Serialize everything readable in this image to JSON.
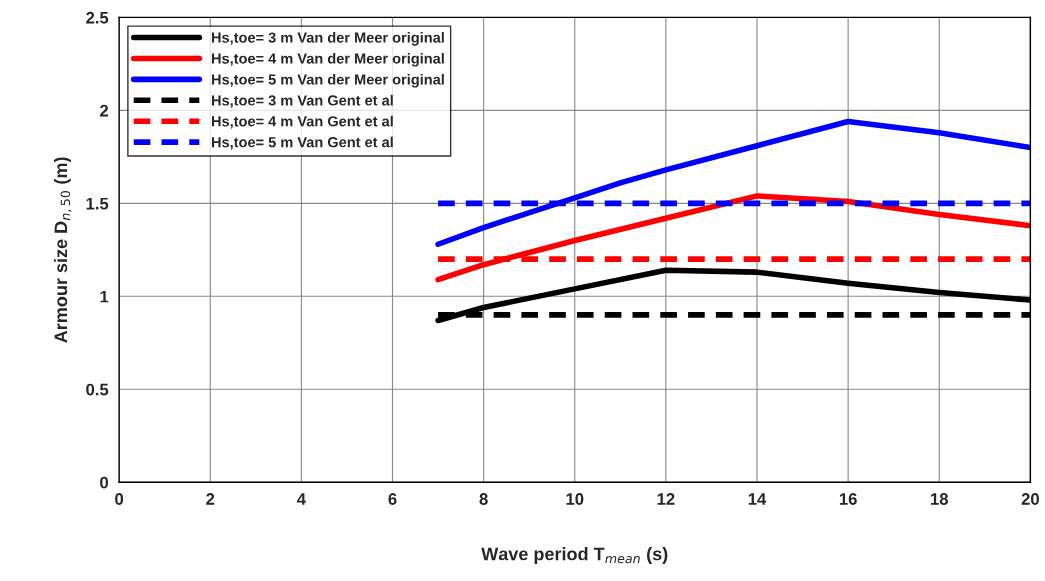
{
  "chart_data": {
    "type": "line",
    "xlabel": "Wave period T$_{mean}$ (s)",
    "ylabel": "Armour size D$_{n,50}$ (m)",
    "xlim": [
      0,
      20
    ],
    "xticks": [
      0,
      2,
      4,
      6,
      8,
      10,
      12,
      14,
      16,
      18,
      20
    ],
    "ylim": [
      0,
      2.5
    ],
    "yticks": [
      0,
      0.5,
      1,
      1.5,
      2,
      2.5
    ],
    "grid": true,
    "legend": "top left",
    "marker": "none",
    "series": [
      {
        "name": "Hs,toe= 3 m Van der Meer original",
        "color": "#000000",
        "line_style": "solid",
        "x": [
          7,
          8,
          10,
          12,
          14,
          16,
          18,
          20
        ],
        "values": [
          0.87,
          0.94,
          1.04,
          1.14,
          1.13,
          1.07,
          1.02,
          0.98
        ]
      },
      {
        "name": "Hs,toe= 4 m Van der Meer original",
        "color": "#ff0000",
        "line_style": "solid",
        "x": [
          7,
          8,
          10,
          12,
          14,
          16,
          18,
          20
        ],
        "values": [
          1.09,
          1.17,
          1.3,
          1.42,
          1.54,
          1.51,
          1.44,
          1.38
        ]
      },
      {
        "name": "Hs,toe= 5 m Van der Meer original",
        "color": "#0000ff",
        "line_style": "solid",
        "x": [
          7,
          8,
          10,
          11,
          12,
          14,
          16,
          18,
          20
        ],
        "values": [
          1.28,
          1.37,
          1.53,
          1.61,
          1.68,
          1.81,
          1.94,
          1.88,
          1.8
        ]
      },
      {
        "name": "Hs,toe= 3 m Van Gent et al",
        "color": "#000000",
        "line_style": "dashed",
        "x": [
          7,
          20
        ],
        "values": [
          0.9,
          0.9
        ]
      },
      {
        "name": "Hs,toe= 4 m Van Gent et al",
        "color": "#ff0000",
        "line_style": "dashed",
        "x": [
          7,
          20
        ],
        "values": [
          1.2,
          1.2
        ]
      },
      {
        "name": "Hs,toe= 5 m Van Gent et al",
        "color": "#0000ff",
        "line_style": "dashed",
        "x": [
          7,
          20
        ],
        "values": [
          1.5,
          1.5
        ]
      }
    ]
  }
}
